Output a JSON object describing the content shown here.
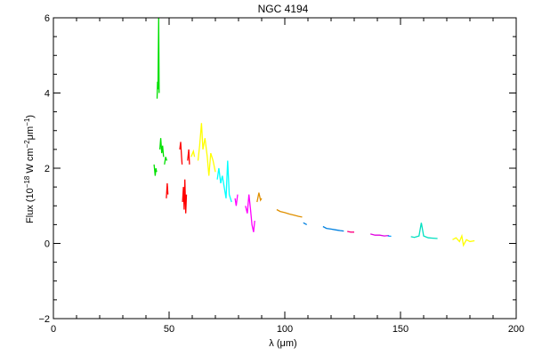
{
  "chart_data": {
    "type": "line",
    "title": "NGC 4194",
    "xlabel": "λ (μm)",
    "ylabel_parts": [
      "Flux (10",
      "−18",
      " W cm",
      "−2",
      "μm",
      "−1",
      ")"
    ],
    "xlim": [
      0,
      200
    ],
    "ylim": [
      -2,
      6
    ],
    "x_ticks": [
      0,
      50,
      100,
      150,
      200
    ],
    "y_ticks": [
      -2,
      0,
      2,
      4,
      6
    ],
    "series": [
      {
        "color": "#00e000",
        "points": [
          [
            44.8,
            3.85
          ],
          [
            45.0,
            4.3
          ],
          [
            45.2,
            4.1
          ],
          [
            45.5,
            6.0
          ],
          [
            45.7,
            4.0
          ]
        ]
      },
      {
        "color": "#00e000",
        "points": [
          [
            43.5,
            2.1
          ],
          [
            44.0,
            1.8
          ],
          [
            44.3,
            2.0
          ],
          [
            44.6,
            1.9
          ]
        ]
      },
      {
        "color": "#00e000",
        "points": [
          [
            46.0,
            2.5
          ],
          [
            46.4,
            2.8
          ],
          [
            46.8,
            2.4
          ],
          [
            47.2,
            2.6
          ],
          [
            47.6,
            2.3
          ]
        ]
      },
      {
        "color": "#00e000",
        "points": [
          [
            48.0,
            2.1
          ],
          [
            48.5,
            2.3
          ],
          [
            49.0,
            2.2
          ]
        ]
      },
      {
        "color": "#ff0000",
        "points": [
          [
            48.8,
            1.2
          ],
          [
            49.2,
            1.6
          ],
          [
            49.5,
            1.3
          ]
        ]
      },
      {
        "color": "#ff0000",
        "points": [
          [
            54.6,
            2.5
          ],
          [
            55.0,
            2.7
          ],
          [
            55.4,
            2.3
          ],
          [
            55.6,
            2.1
          ]
        ]
      },
      {
        "color": "#ff0000",
        "points": [
          [
            55.8,
            1.1
          ],
          [
            56.2,
            1.5
          ],
          [
            56.5,
            0.9
          ],
          [
            56.8,
            1.7
          ],
          [
            57.2,
            0.8
          ],
          [
            57.5,
            1.3
          ]
        ]
      },
      {
        "color": "#ff0000",
        "points": [
          [
            58.0,
            2.2
          ],
          [
            58.5,
            2.5
          ],
          [
            58.8,
            2.1
          ]
        ]
      },
      {
        "color": "#ffff00",
        "points": [
          [
            59.5,
            2.3
          ],
          [
            60.5,
            2.45
          ],
          [
            61.0,
            2.3
          ]
        ]
      },
      {
        "color": "#ffff00",
        "points": [
          [
            62.5,
            2.2
          ],
          [
            63.2,
            2.6
          ],
          [
            64.0,
            3.2
          ],
          [
            64.6,
            2.5
          ],
          [
            65.5,
            2.8
          ],
          [
            66.5,
            2.3
          ],
          [
            67.2,
            1.8
          ],
          [
            68.0,
            2.4
          ],
          [
            69.0,
            2.2
          ],
          [
            70.0,
            1.9
          ]
        ]
      },
      {
        "color": "#00ffff",
        "points": [
          [
            70.8,
            1.7
          ],
          [
            71.5,
            2.0
          ],
          [
            72.3,
            1.6
          ],
          [
            73.0,
            1.8
          ],
          [
            73.8,
            1.5
          ],
          [
            74.6,
            1.2
          ],
          [
            75.3,
            2.2
          ],
          [
            76.0,
            1.3
          ],
          [
            77.0,
            1.1
          ]
        ]
      },
      {
        "color": "#ff00ff",
        "points": [
          [
            78.5,
            1.2
          ],
          [
            79.0,
            1.0
          ],
          [
            79.6,
            1.3
          ]
        ]
      },
      {
        "color": "#ff00ff",
        "points": [
          [
            83.0,
            1.0
          ],
          [
            83.8,
            0.8
          ],
          [
            84.5,
            1.3
          ],
          [
            85.2,
            0.9
          ],
          [
            85.8,
            0.5
          ],
          [
            86.5,
            0.3
          ],
          [
            87.0,
            0.6
          ]
        ]
      },
      {
        "color": "#e09000",
        "points": [
          [
            88.0,
            1.1
          ],
          [
            88.8,
            1.35
          ],
          [
            89.5,
            1.15
          ],
          [
            90.0,
            1.2
          ]
        ]
      },
      {
        "color": "#e09000",
        "points": [
          [
            96.5,
            0.9
          ],
          [
            98.0,
            0.85
          ],
          [
            100.0,
            0.82
          ],
          [
            102.0,
            0.78
          ],
          [
            104.0,
            0.75
          ],
          [
            106.0,
            0.72
          ],
          [
            107.5,
            0.7
          ]
        ]
      },
      {
        "color": "#0080e0",
        "points": [
          [
            108.0,
            0.55
          ],
          [
            109.5,
            0.5
          ]
        ]
      },
      {
        "color": "#0080e0",
        "points": [
          [
            116.5,
            0.45
          ],
          [
            118.0,
            0.4
          ],
          [
            120.0,
            0.38
          ],
          [
            122.0,
            0.36
          ],
          [
            124.0,
            0.34
          ],
          [
            125.5,
            0.33
          ]
        ]
      },
      {
        "color": "#ff0080",
        "points": [
          [
            127.0,
            0.32
          ],
          [
            128.5,
            0.3
          ],
          [
            130.0,
            0.3
          ]
        ]
      },
      {
        "color": "#e000e0",
        "points": [
          [
            137.0,
            0.25
          ],
          [
            139.0,
            0.22
          ],
          [
            141.0,
            0.22
          ],
          [
            143.0,
            0.2
          ],
          [
            145.0,
            0.21
          ]
        ]
      },
      {
        "color": "#00a0ff",
        "points": [
          [
            144.5,
            0.2
          ],
          [
            146.0,
            0.19
          ]
        ]
      },
      {
        "color": "#00e0c0",
        "points": [
          [
            154.5,
            0.18
          ],
          [
            156.0,
            0.16
          ],
          [
            158.0,
            0.2
          ],
          [
            159.0,
            0.55
          ],
          [
            160.0,
            0.2
          ],
          [
            162.0,
            0.15
          ],
          [
            164.0,
            0.14
          ],
          [
            166.0,
            0.13
          ]
        ]
      },
      {
        "color": "#ffff00",
        "points": [
          [
            172.5,
            0.1
          ],
          [
            174.0,
            0.15
          ],
          [
            175.5,
            0.05
          ],
          [
            176.5,
            0.2
          ],
          [
            177.2,
            -0.05
          ],
          [
            178.5,
            0.1
          ],
          [
            180.0,
            0.05
          ],
          [
            182.0,
            0.07
          ]
        ]
      }
    ]
  }
}
